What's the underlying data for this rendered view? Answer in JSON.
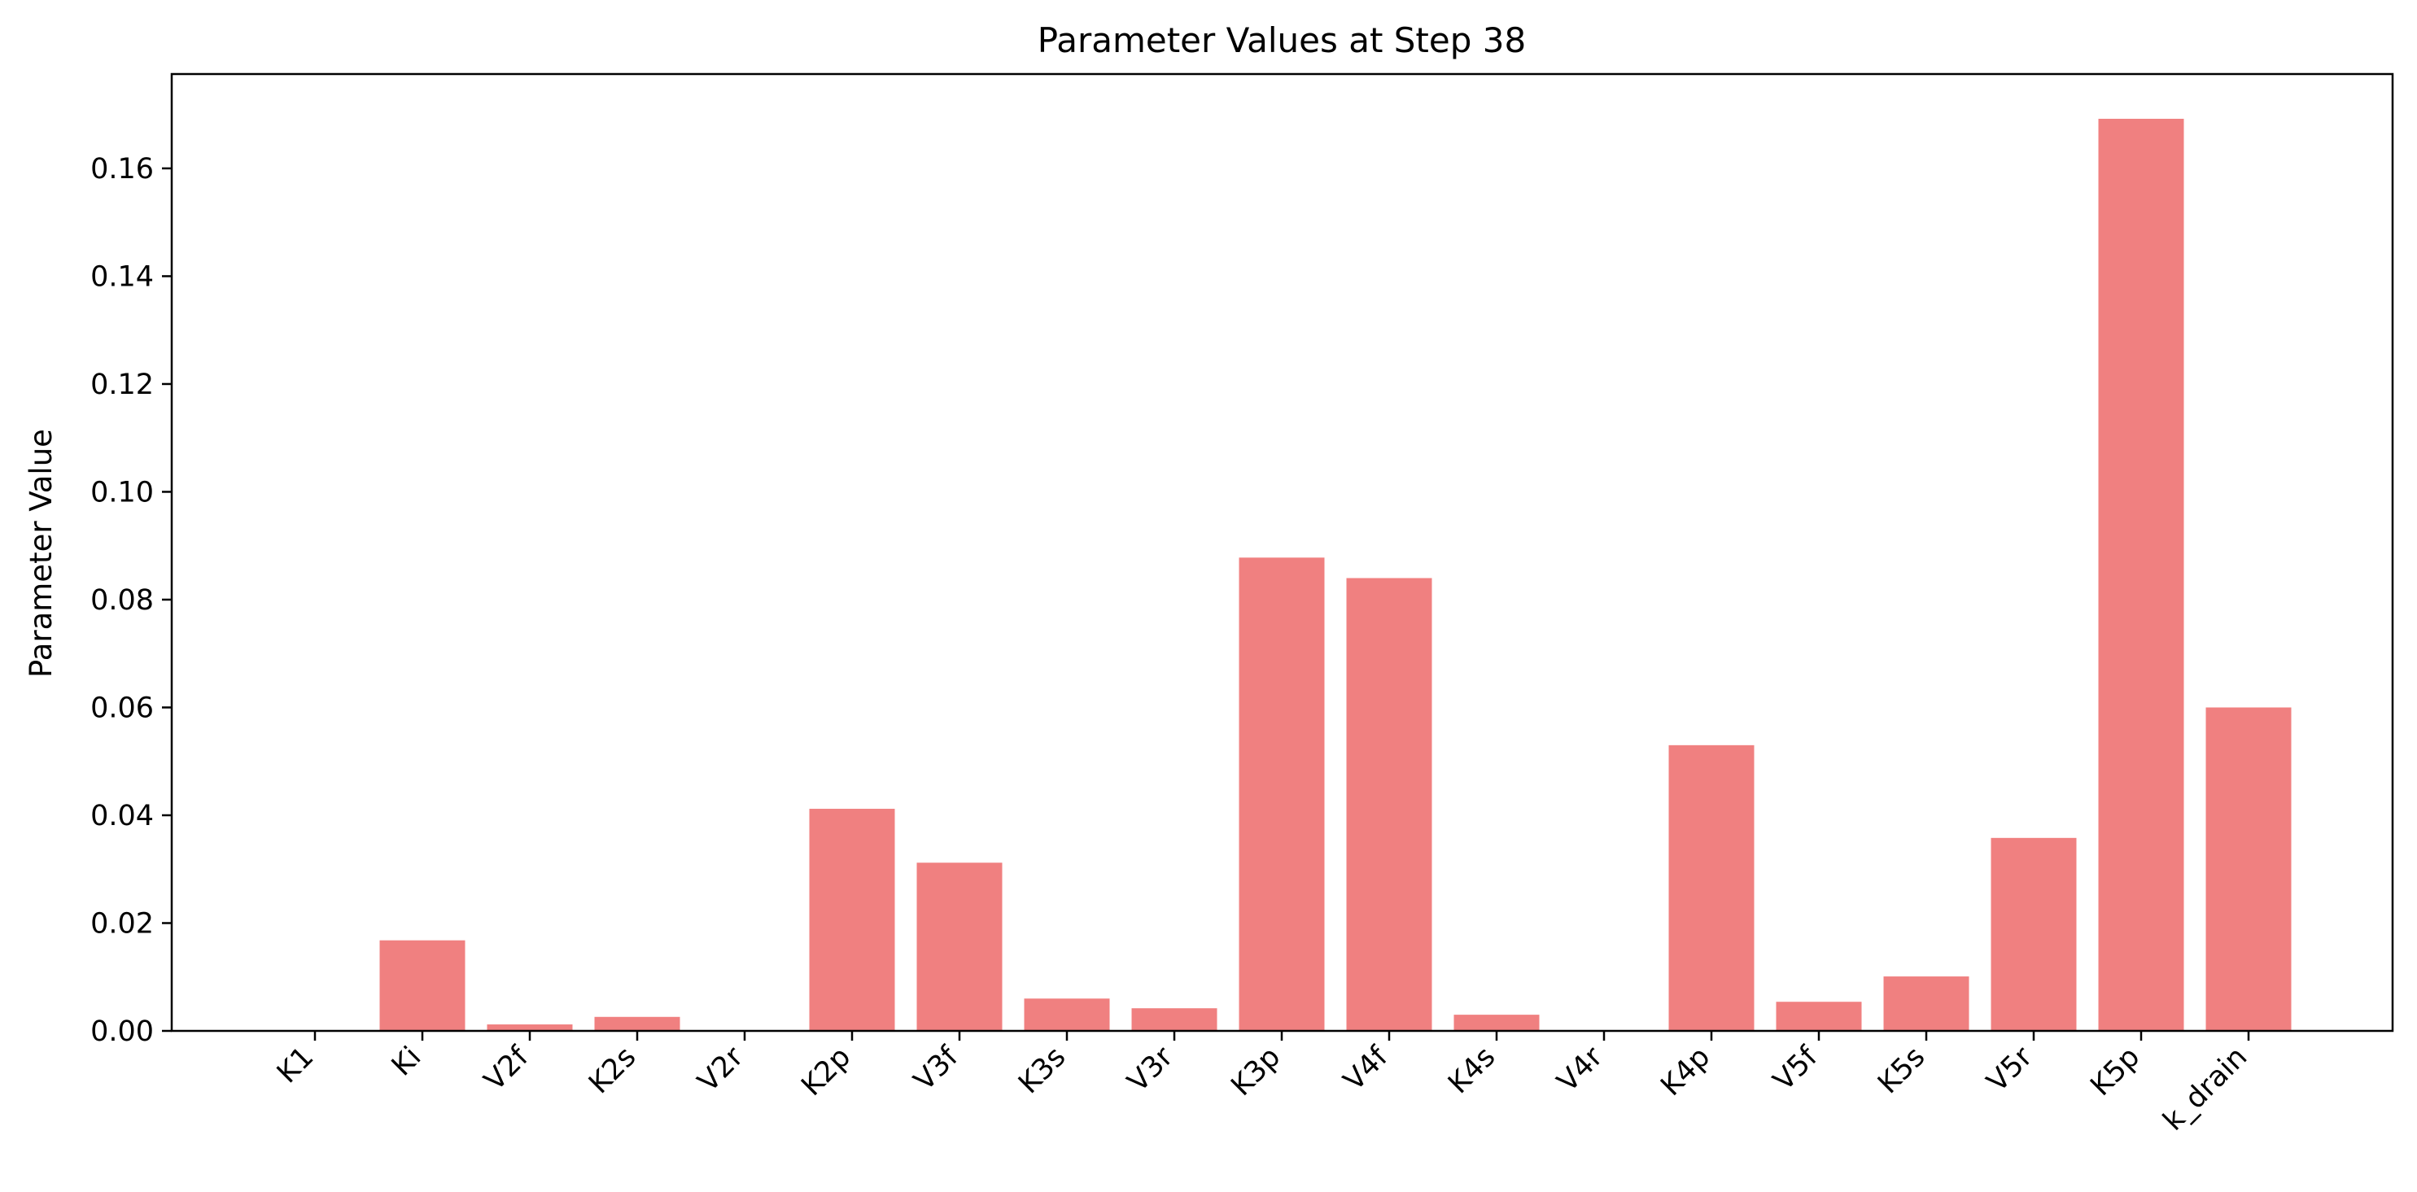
{
  "chart_data": {
    "type": "bar",
    "title": "Parameter Values at Step 38",
    "xlabel": "",
    "ylabel": "Parameter Value",
    "categories": [
      "K1",
      "Ki",
      "V2f",
      "K2s",
      "V2r",
      "K2p",
      "V3f",
      "K3s",
      "V3r",
      "K3p",
      "V4f",
      "K4s",
      "V4r",
      "K4p",
      "V5f",
      "K5s",
      "V5r",
      "K5p",
      "k_drain"
    ],
    "values": [
      0.0,
      0.0168,
      0.0012,
      0.0026,
      0.0,
      0.0412,
      0.0312,
      0.006,
      0.0042,
      0.0878,
      0.084,
      0.003,
      0.0,
      0.053,
      0.0054,
      0.0101,
      0.0358,
      0.1692,
      0.06
    ],
    "ylim": [
      0,
      0.1775
    ],
    "yticks": [
      "0.00",
      "0.02",
      "0.04",
      "0.06",
      "0.08",
      "0.10",
      "0.12",
      "0.14",
      "0.16"
    ],
    "bar_color": "#f08080",
    "grid": false,
    "legend": "none"
  }
}
